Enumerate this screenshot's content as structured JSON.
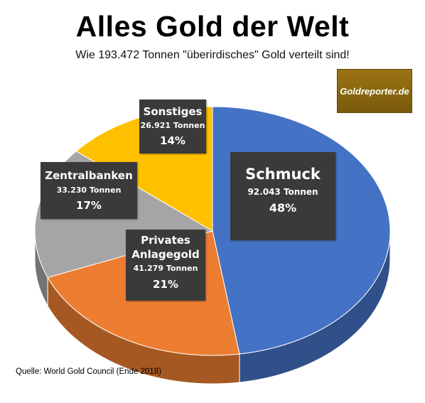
{
  "header": {
    "title": "Alles Gold der Welt",
    "subtitle": "Wie 193.472 Tonnen \"überirdisches\" Gold verteilt sind!"
  },
  "logo": {
    "text": "Goldreporter.de"
  },
  "source": "Quelle: World Gold Council (Ende 2018)",
  "chart_data": {
    "type": "pie",
    "title": "Alles Gold der Welt",
    "subtitle": "Wie 193.472 Tonnen \"überirdisches\" Gold verteilt sind!",
    "total_tonnes_label": "193.472 Tonnen",
    "slices": [
      {
        "name": "Schmuck",
        "tonnes_label": "92.043 Tonnen",
        "tonnes": 92043,
        "percent_label": "48%",
        "percent": 48,
        "color": "#4472c4"
      },
      {
        "name": "Privates Anlagegold",
        "name_lines": [
          "Privates",
          "Anlagegold"
        ],
        "tonnes_label": "41.279 Tonnen",
        "tonnes": 41279,
        "percent_label": "21%",
        "percent": 21,
        "color": "#ed7d31"
      },
      {
        "name": "Zentralbanken",
        "tonnes_label": "33.230 Tonnen",
        "tonnes": 33230,
        "percent_label": "17%",
        "percent": 17,
        "color": "#a5a5a5"
      },
      {
        "name": "Sonstiges",
        "tonnes_label": "26.921 Tonnen",
        "tonnes": 26921,
        "percent_label": "14%",
        "percent": 14,
        "color": "#ffc000"
      }
    ]
  }
}
